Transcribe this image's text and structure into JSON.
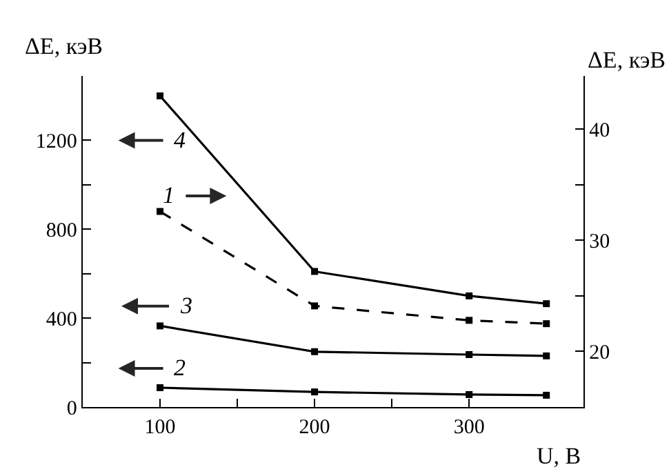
{
  "chart_data": {
    "type": "line",
    "xlabel": "U, В",
    "ylabel": "ΔE, кэВ",
    "y2label": "ΔE, кэВ",
    "x": [
      100,
      200,
      300,
      350
    ],
    "xlim": [
      50,
      374
    ],
    "xticks": [
      100,
      {
        "value": 150,
        "label": null
      },
      200,
      {
        "value": 250,
        "label": null
      },
      300
    ],
    "ylim": [
      0,
      1490
    ],
    "yticks": [
      0,
      {
        "value": 200,
        "label": null
      },
      400,
      {
        "value": 600,
        "label": null
      },
      800,
      {
        "value": 1000,
        "label": null
      },
      1200
    ],
    "y2lim": [
      15,
      44.8
    ],
    "y2ticks": [
      20,
      {
        "value": 25,
        "label": null
      },
      30,
      {
        "value": 35,
        "label": null
      },
      40
    ],
    "series": [
      {
        "name": "1",
        "color": "#000000",
        "values": [
          32.6,
          24.1,
          22.8,
          22.5
        ],
        "axis": "y2",
        "line_style": "dashed"
      },
      {
        "name": "2",
        "color": "#000000",
        "values": [
          87,
          68,
          56,
          53
        ]
      },
      {
        "name": "3",
        "color": "#000000",
        "values": [
          365,
          249,
          236,
          230
        ]
      },
      {
        "name": "4",
        "color": "#000000",
        "values": [
          1400,
          610,
          500,
          465
        ]
      }
    ],
    "marker": "square",
    "line_style": "solid",
    "legend": false
  }
}
